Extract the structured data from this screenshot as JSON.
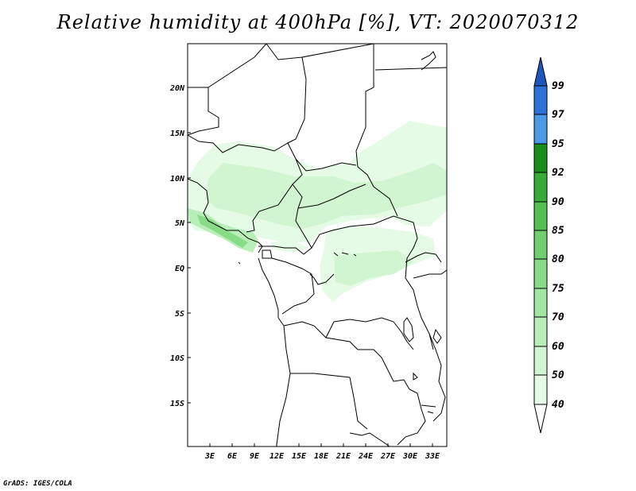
{
  "title": "Relative humidity at 400hPa [%], VT: 2020070312",
  "credit": "GrADS: IGES/COLA",
  "map": {
    "lon_labels": [
      "3E",
      "6E",
      "9E",
      "12E",
      "15E",
      "18E",
      "21E",
      "24E",
      "27E",
      "30E",
      "33E"
    ],
    "lat_labels": [
      "20N",
      "15N",
      "10N",
      "5N",
      "EQ",
      "5S",
      "10S",
      "15S"
    ]
  },
  "colorbar": {
    "levels": [
      "40",
      "50",
      "60",
      "70",
      "75",
      "80",
      "85",
      "90",
      "92",
      "95",
      "97",
      "99"
    ],
    "colors": [
      "#ffffff",
      "#e6fbe6",
      "#d0f5d0",
      "#b8eeb8",
      "#a0e6a0",
      "#88dc88",
      "#70d070",
      "#52c052",
      "#36ac36",
      "#1a901a",
      "#4a9ae8",
      "#2e72d8",
      "#1e56c0"
    ]
  }
}
